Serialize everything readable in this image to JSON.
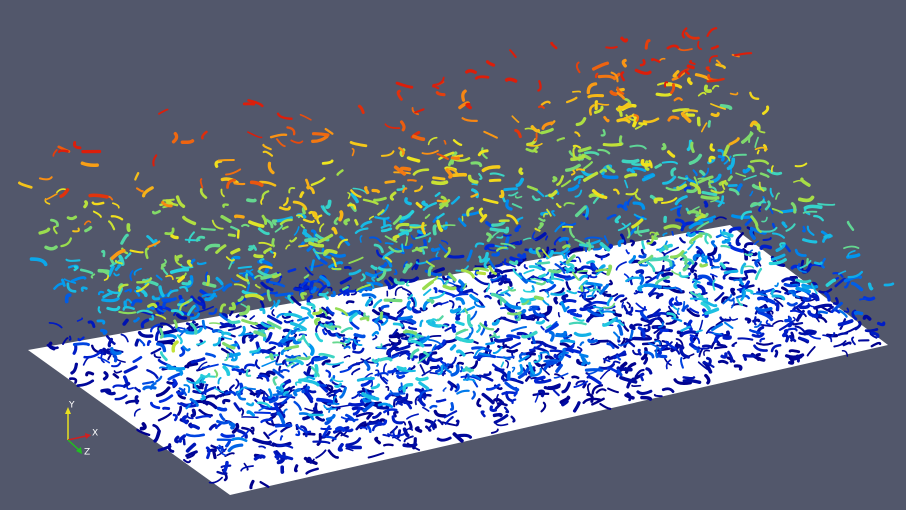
{
  "axes": {
    "y": "Y",
    "x": "X",
    "z": "Z"
  }
}
